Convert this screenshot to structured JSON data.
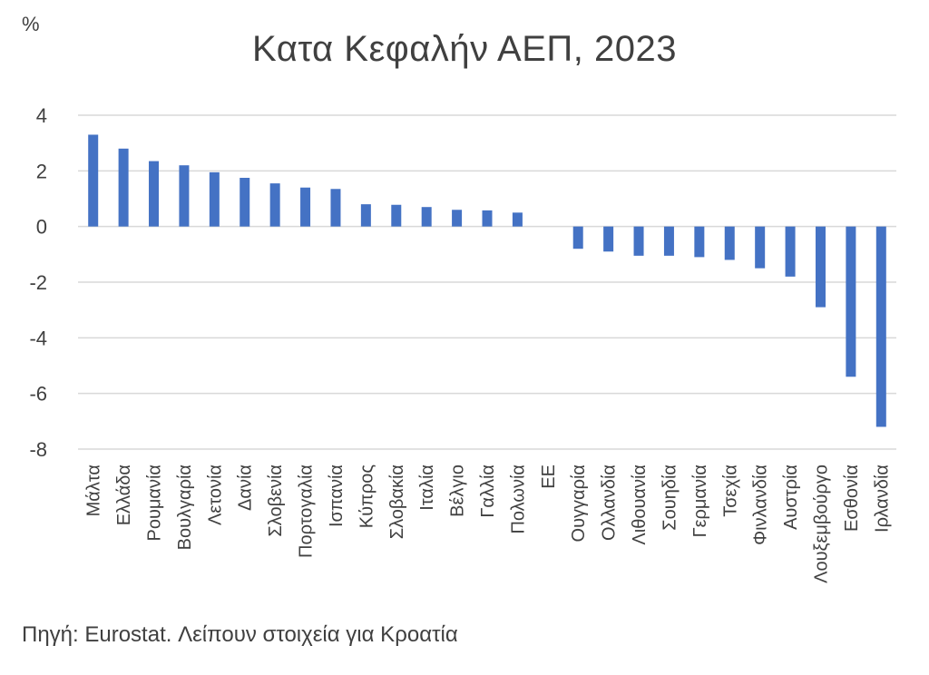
{
  "unit_label": "%",
  "title": "Κατα Κεφαλήν ΑΕΠ, 2023",
  "source": "Πηγή: Eurostat. Λείπουν στοιχεία για Κροατία",
  "chart_data": {
    "type": "bar",
    "title": "Κατα Κεφαλήν ΑΕΠ, 2023",
    "xlabel": "",
    "ylabel": "%",
    "ylim": [
      -8,
      4
    ],
    "yticks": [
      4,
      2,
      0,
      -2,
      -4,
      -6,
      -8
    ],
    "grid": true,
    "bar_color": "#4472c4",
    "categories": [
      "Μάλτα",
      "Ελλάδα",
      "Ρουμανία",
      "Βουλγαρία",
      "Λετονία",
      "Δανία",
      "Σλοβενία",
      "Πορτογαλία",
      "Ισπανία",
      "Κύπρος",
      "Σλοβακία",
      "Ιταλία",
      "Βέλγιο",
      "Γαλλία",
      "Πολωνία",
      "ΕΕ",
      "Ουγγαρία",
      "Ολλανδία",
      "Λιθουανία",
      "Σουηδία",
      "Γερμανία",
      "Τσεχία",
      "Φινλανδία",
      "Αυστρία",
      "Λουξεμβούργο",
      "Εσθονία",
      "Ιρλανδία"
    ],
    "values": [
      3.3,
      2.8,
      2.35,
      2.2,
      1.95,
      1.75,
      1.55,
      1.4,
      1.35,
      0.8,
      0.78,
      0.7,
      0.6,
      0.58,
      0.5,
      0.0,
      -0.8,
      -0.9,
      -1.05,
      -1.05,
      -1.1,
      -1.2,
      -1.5,
      -1.8,
      -2.9,
      -5.4,
      -7.2
    ]
  }
}
